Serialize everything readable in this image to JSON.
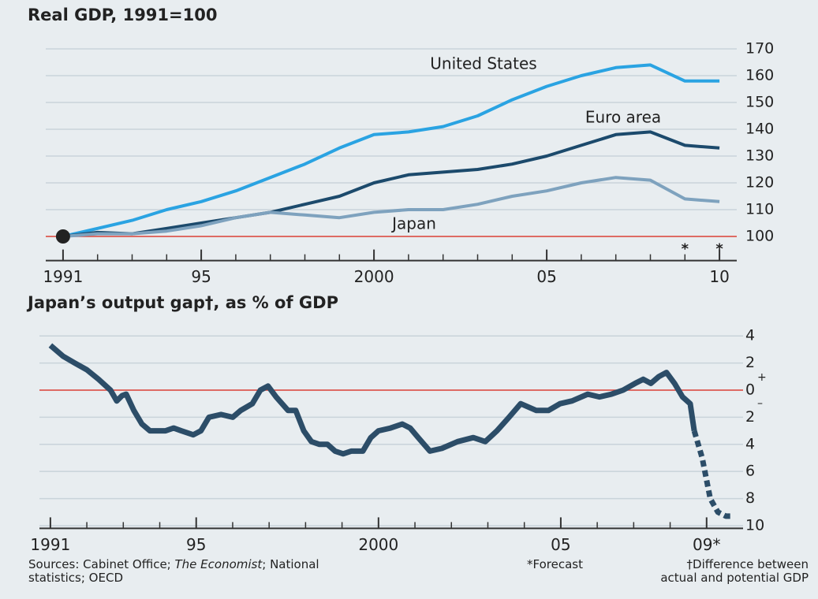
{
  "chart_data": [
    {
      "type": "line",
      "title": "Real GDP, 1991=100",
      "x": [
        1991,
        1992,
        1993,
        1994,
        1995,
        1996,
        1997,
        1998,
        1999,
        2000,
        2001,
        2002,
        2003,
        2004,
        2005,
        2006,
        2007,
        2008,
        2009,
        2010
      ],
      "series": [
        {
          "name": "United States",
          "color": "#2aa3e2",
          "values": [
            100,
            103,
            106,
            110,
            113,
            117,
            122,
            127,
            133,
            138,
            139,
            141,
            145,
            151,
            156,
            160,
            163,
            164,
            158,
            158
          ]
        },
        {
          "name": "Euro area",
          "color": "#1c4a6c",
          "values": [
            100,
            101.5,
            101,
            103,
            105,
            107,
            109,
            112,
            115,
            120,
            123,
            124,
            125,
            127,
            130,
            134,
            138,
            139,
            134,
            133
          ]
        },
        {
          "name": "Japan",
          "color": "#7ea2be",
          "values": [
            100,
            101,
            101,
            102,
            104,
            107,
            109,
            108,
            107,
            109,
            110,
            110,
            112,
            115,
            117,
            120,
            122,
            121,
            114,
            113
          ]
        }
      ],
      "xlim": [
        1990.5,
        2010.5
      ],
      "xticks": [
        1991,
        {
          "value": 1995,
          "label": "95"
        },
        2000,
        {
          "value": 2005,
          "label": "05"
        },
        {
          "value": 2010,
          "label": "10"
        }
      ],
      "xminorticks": [
        1991,
        1992,
        1993,
        1994,
        1995,
        1996,
        1997,
        1998,
        1999,
        2000,
        2001,
        2002,
        2003,
        2004,
        2005,
        2006,
        2007,
        2008,
        2009,
        2010
      ],
      "ylim": [
        91,
        176
      ],
      "yticks": [
        100,
        110,
        120,
        130,
        140,
        150,
        160,
        170
      ],
      "refline": 100,
      "refline_color": "#e0443a",
      "grid": true,
      "annotations": [
        {
          "text": "*",
          "x": 2009
        },
        {
          "text": "*",
          "x": 2010
        }
      ]
    },
    {
      "type": "line",
      "title": "Japan’s output gap†, as % of GDP",
      "series": [
        {
          "color": "#2c4d68",
          "dashed": false,
          "x": [
            1991.0,
            1991.35,
            1991.67,
            1992.0,
            1992.32,
            1992.65,
            1992.82,
            1992.97,
            1993.08,
            1993.29,
            1993.51,
            1993.73,
            1993.94,
            1994.16,
            1994.38,
            1994.59,
            1994.92,
            1995.13,
            1995.35,
            1995.68,
            1996.0,
            1996.22,
            1996.54,
            1996.76,
            1996.97,
            1997.19,
            1997.52,
            1997.73,
            1997.95,
            1998.16,
            1998.38,
            1998.6,
            1998.81,
            1999.03,
            1999.25,
            1999.57,
            1999.79,
            2000.0,
            2000.33,
            2000.65,
            2000.87,
            2001.09,
            2001.41,
            2001.74,
            2002.17,
            2002.6,
            2002.93,
            2003.25,
            2003.58,
            2003.9,
            2004.33,
            2004.66,
            2004.98,
            2005.31,
            2005.74,
            2006.06,
            2006.39,
            2006.71,
            2007.04,
            2007.26,
            2007.47,
            2007.69,
            2007.9,
            2008.12,
            2008.34,
            2008.55,
            2008.66
          ],
          "values": [
            3.3,
            2.5,
            2.0,
            1.5,
            0.8,
            0.0,
            -0.8,
            -0.4,
            -0.3,
            -1.5,
            -2.5,
            -3.0,
            -3.0,
            -3.0,
            -2.8,
            -3.0,
            -3.3,
            -3.0,
            -2.0,
            -1.8,
            -2.0,
            -1.5,
            -1.0,
            0.0,
            0.3,
            -0.5,
            -1.5,
            -1.5,
            -3.0,
            -3.8,
            -4.0,
            -4.0,
            -4.5,
            -4.7,
            -4.5,
            -4.5,
            -3.5,
            -3.0,
            -2.8,
            -2.5,
            -2.8,
            -3.5,
            -4.5,
            -4.3,
            -3.8,
            -3.5,
            -3.8,
            -3.0,
            -2.0,
            -1.0,
            -1.5,
            -1.5,
            -1.0,
            -0.8,
            -0.3,
            -0.5,
            -0.3,
            0.0,
            0.5,
            0.8,
            0.5,
            1.0,
            1.3,
            0.5,
            -0.5,
            -1.0,
            -3.0
          ]
        },
        {
          "color": "#2c4d68",
          "dashed": true,
          "x": [
            2008.66,
            2008.88,
            2008.99,
            2009.1,
            2009.31,
            2009.53,
            2009.74
          ],
          "values": [
            -3.0,
            -5.0,
            -6.5,
            -8.0,
            -9.0,
            -9.3,
            -9.3
          ]
        }
      ],
      "xlim": [
        1990.7,
        2010.0
      ],
      "xticks": [
        1991,
        {
          "value": 1995,
          "label": "95"
        },
        2000,
        {
          "value": 2005,
          "label": "05"
        },
        {
          "value": 2009,
          "label": "09*"
        }
      ],
      "xminorticks": [
        1991,
        1992,
        1993,
        1994,
        1995,
        1996,
        1997,
        1998,
        1999,
        2000,
        2001,
        2002,
        2003,
        2004,
        2005,
        2006,
        2007,
        2008,
        2009
      ],
      "ylim": [
        -10.2,
        5
      ],
      "yticks": [
        4,
        2,
        0,
        {
          "value": -2,
          "label": "2"
        },
        {
          "value": -4,
          "label": "4"
        },
        {
          "value": -6,
          "label": "6"
        },
        {
          "value": -8,
          "label": "8"
        },
        {
          "value": -10,
          "label": "10"
        }
      ],
      "sign_labels": [
        "+",
        "–"
      ],
      "refline": 0,
      "refline_color": "#e0443a",
      "grid": true
    }
  ],
  "footer": {
    "sources": [
      "Sources: Cabinet Office; ",
      "The Economist",
      "; National statistics; OECD"
    ],
    "forecast_note": "*Forecast",
    "dagger_note": "†Difference between actual and potential GDP"
  }
}
